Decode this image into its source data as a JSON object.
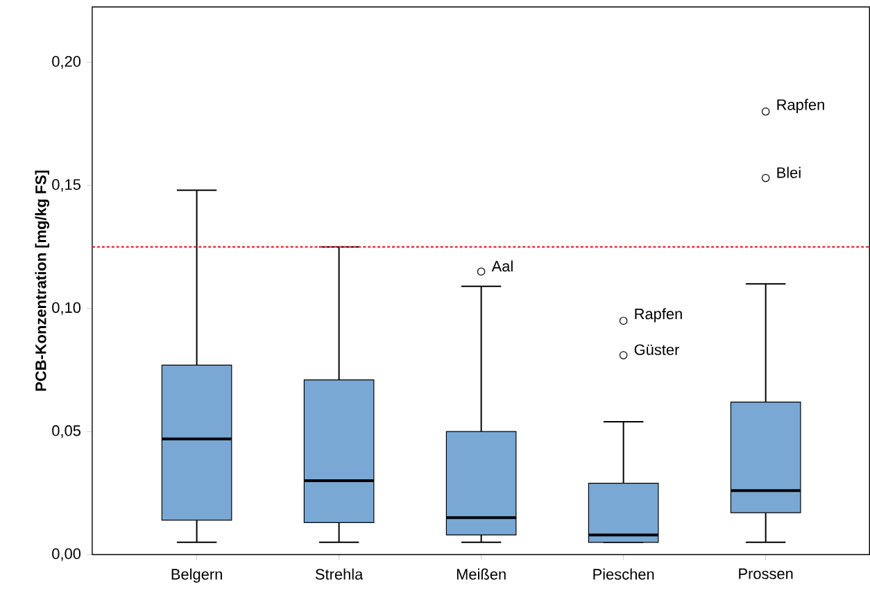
{
  "chart_data": {
    "type": "box",
    "ylabel": "PCB-Konzentration [mg/kg FS]",
    "categories": [
      "Belgern",
      "Strehla",
      "Meißen",
      "Pieschen",
      "Prossen"
    ],
    "color": "#7aa8d4",
    "boxes": [
      {
        "low": 0.005,
        "q1": 0.014,
        "median": 0.047,
        "q3": 0.077,
        "high": 0.148
      },
      {
        "low": 0.005,
        "q1": 0.013,
        "median": 0.03,
        "q3": 0.071,
        "high": 0.125
      },
      {
        "low": 0.005,
        "q1": 0.008,
        "median": 0.015,
        "q3": 0.05,
        "high": 0.109,
        "outliers": [
          0.115
        ]
      },
      {
        "low": 0.005,
        "q1": 0.005,
        "median": 0.008,
        "q3": 0.029,
        "high": 0.054,
        "outliers": [
          0.095,
          0.081
        ]
      },
      {
        "low": 0.005,
        "q1": 0.017,
        "median": 0.026,
        "q3": 0.062,
        "high": 0.11,
        "outliers": [
          0.18,
          0.153
        ]
      }
    ],
    "ylim": [
      0,
      0.2225
    ],
    "yticks": [
      {
        "value": 0,
        "label": "0,00"
      },
      {
        "value": 0.05,
        "label": "0,05"
      },
      {
        "value": 0.1,
        "label": "0,10"
      },
      {
        "value": 0.15,
        "label": "0,15"
      },
      {
        "value": 0.2,
        "label": "0,20"
      }
    ],
    "ref_lines": [
      {
        "axis": "y",
        "value": 0.125,
        "color": "#e8302a",
        "line_style": "dotted"
      }
    ],
    "annotations": [
      "Aal",
      "Rapfen",
      "Güster",
      "Rapfen",
      "Blei"
    ],
    "grid": false
  }
}
